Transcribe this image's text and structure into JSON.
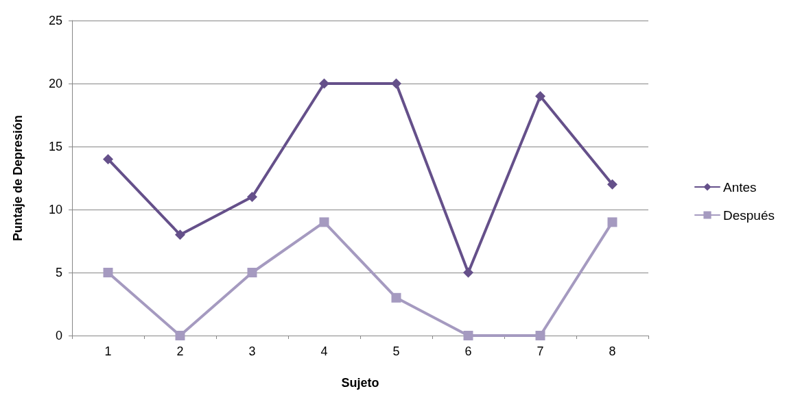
{
  "chart_data": {
    "type": "line",
    "xlabel": "Sujeto",
    "ylabel": "Puntaje de Depresión",
    "categories": [
      "1",
      "2",
      "3",
      "4",
      "5",
      "6",
      "7",
      "8"
    ],
    "series": [
      {
        "name": "Antes",
        "color": "#65508a",
        "marker": "diamond",
        "values": [
          14,
          8,
          11,
          20,
          20,
          5,
          19,
          12
        ]
      },
      {
        "name": "Después",
        "color": "#a59ac0",
        "marker": "square",
        "values": [
          5,
          0,
          5,
          9,
          3,
          0,
          0,
          9
        ]
      }
    ],
    "ylim": [
      0,
      25
    ],
    "yticks": [
      0,
      5,
      10,
      15,
      20,
      25
    ],
    "grid": "y",
    "legend": "right",
    "line_style": "solid"
  }
}
